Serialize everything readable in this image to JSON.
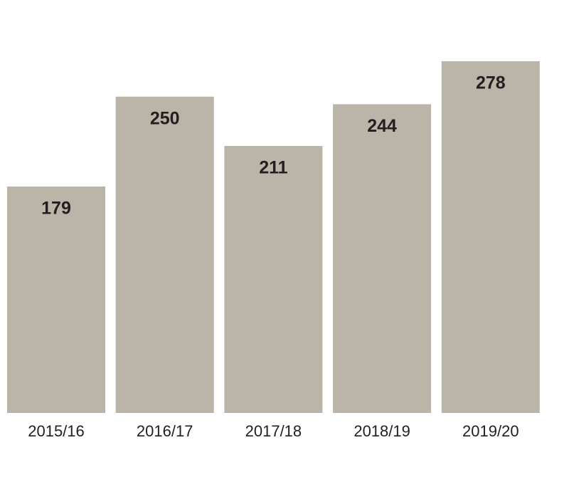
{
  "chart_data": {
    "type": "bar",
    "categories": [
      "2015/16",
      "2016/17",
      "2017/18",
      "2018/19",
      "2019/20"
    ],
    "values": [
      179,
      250,
      211,
      244,
      278
    ],
    "color": "#bbb4a8"
  }
}
